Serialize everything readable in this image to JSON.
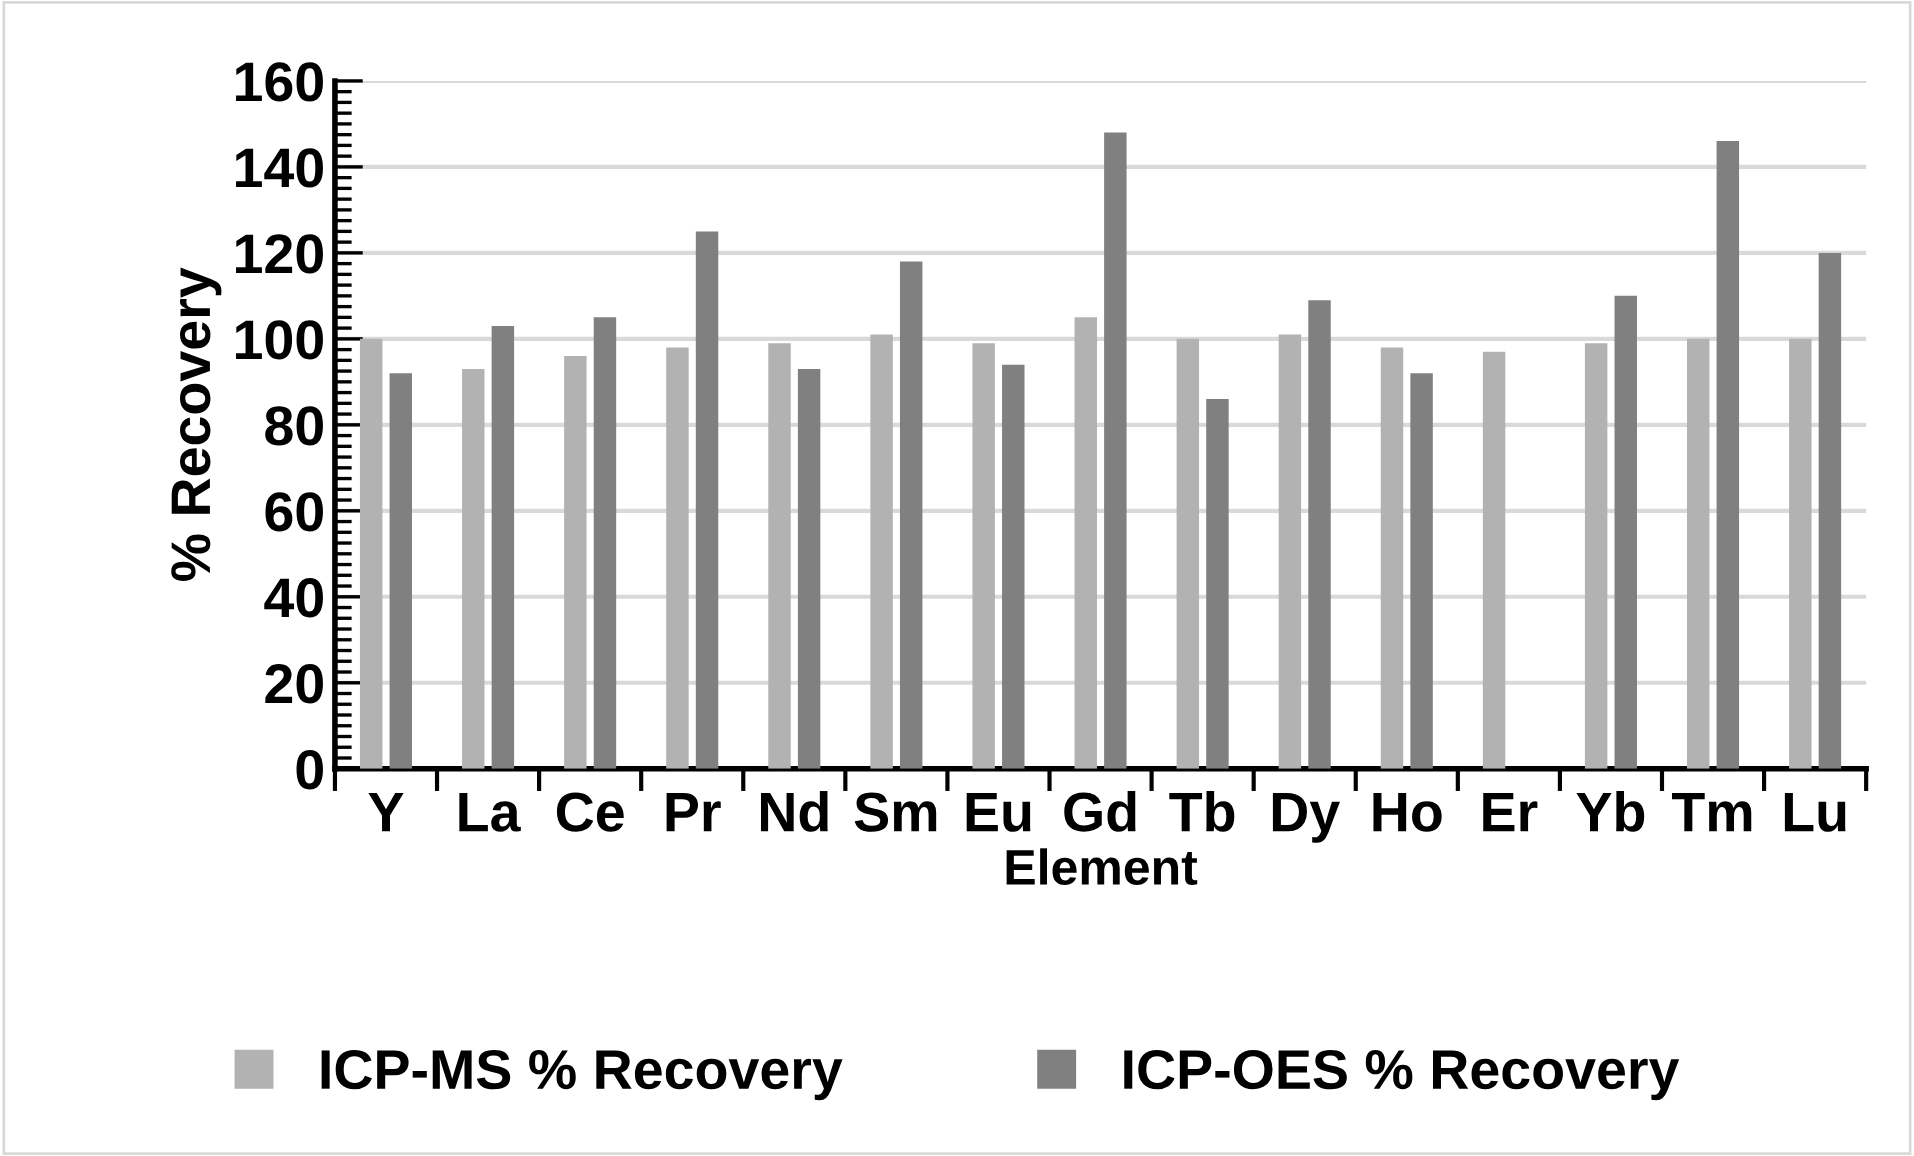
{
  "chart_data": {
    "type": "bar",
    "xlabel": "Element",
    "ylabel": "% Recovery",
    "categories": [
      "Y",
      "La",
      "Ce",
      "Pr",
      "Nd",
      "Sm",
      "Eu",
      "Gd",
      "Tb",
      "Dy",
      "Ho",
      "Er",
      "Yb",
      "Tm",
      "Lu"
    ],
    "series": [
      {
        "name": "ICP-MS % Recovery",
        "color": "#b2b2b2",
        "values": [
          100,
          93,
          96,
          98,
          99,
          101,
          99,
          105,
          100,
          101,
          98,
          97,
          99,
          100,
          100
        ]
      },
      {
        "name": "ICP-OES % Recovery",
        "color": "#808080",
        "values": [
          92,
          103,
          105,
          125,
          93,
          118,
          94,
          148,
          86,
          109,
          92,
          null,
          110,
          146,
          120
        ]
      }
    ],
    "ylim": [
      0,
      160
    ],
    "yticks": [
      0,
      {
        "value": 2.5,
        "label": null
      },
      {
        "value": 5,
        "label": null
      },
      {
        "value": 7.5,
        "label": null
      },
      {
        "value": 10,
        "label": null
      },
      {
        "value": 12.5,
        "label": null
      },
      {
        "value": 15,
        "label": null
      },
      {
        "value": 17.5,
        "label": null
      },
      20,
      {
        "value": 22.5,
        "label": null
      },
      {
        "value": 25,
        "label": null
      },
      {
        "value": 27.5,
        "label": null
      },
      {
        "value": 30,
        "label": null
      },
      {
        "value": 32.5,
        "label": null
      },
      {
        "value": 35,
        "label": null
      },
      {
        "value": 37.5,
        "label": null
      },
      40,
      {
        "value": 42.5,
        "label": null
      },
      {
        "value": 45,
        "label": null
      },
      {
        "value": 47.5,
        "label": null
      },
      {
        "value": 50,
        "label": null
      },
      {
        "value": 52.5,
        "label": null
      },
      {
        "value": 55,
        "label": null
      },
      {
        "value": 57.5,
        "label": null
      },
      60,
      {
        "value": 62.5,
        "label": null
      },
      {
        "value": 65,
        "label": null
      },
      {
        "value": 67.5,
        "label": null
      },
      {
        "value": 70,
        "label": null
      },
      {
        "value": 72.5,
        "label": null
      },
      {
        "value": 75,
        "label": null
      },
      {
        "value": 77.5,
        "label": null
      },
      80,
      {
        "value": 82.5,
        "label": null
      },
      {
        "value": 85,
        "label": null
      },
      {
        "value": 87.5,
        "label": null
      },
      {
        "value": 90,
        "label": null
      },
      {
        "value": 92.5,
        "label": null
      },
      {
        "value": 95,
        "label": null
      },
      {
        "value": 97.5,
        "label": null
      },
      100,
      {
        "value": 102.5,
        "label": null
      },
      {
        "value": 105,
        "label": null
      },
      {
        "value": 107.5,
        "label": null
      },
      {
        "value": 110,
        "label": null
      },
      {
        "value": 112.5,
        "label": null
      },
      {
        "value": 115,
        "label": null
      },
      {
        "value": 117.5,
        "label": null
      },
      120,
      {
        "value": 122.5,
        "label": null
      },
      {
        "value": 125,
        "label": null
      },
      {
        "value": 127.5,
        "label": null
      },
      {
        "value": 130,
        "label": null
      },
      {
        "value": 132.5,
        "label": null
      },
      {
        "value": 135,
        "label": null
      },
      {
        "value": 137.5,
        "label": null
      },
      140,
      {
        "value": 142.5,
        "label": null
      },
      {
        "value": 145,
        "label": null
      },
      {
        "value": 147.5,
        "label": null
      },
      {
        "value": 150,
        "label": null
      },
      {
        "value": 152.5,
        "label": null
      },
      {
        "value": 155,
        "label": null
      },
      {
        "value": 157.5,
        "label": null
      },
      160
    ],
    "grid": "y",
    "legend": "bottom"
  }
}
